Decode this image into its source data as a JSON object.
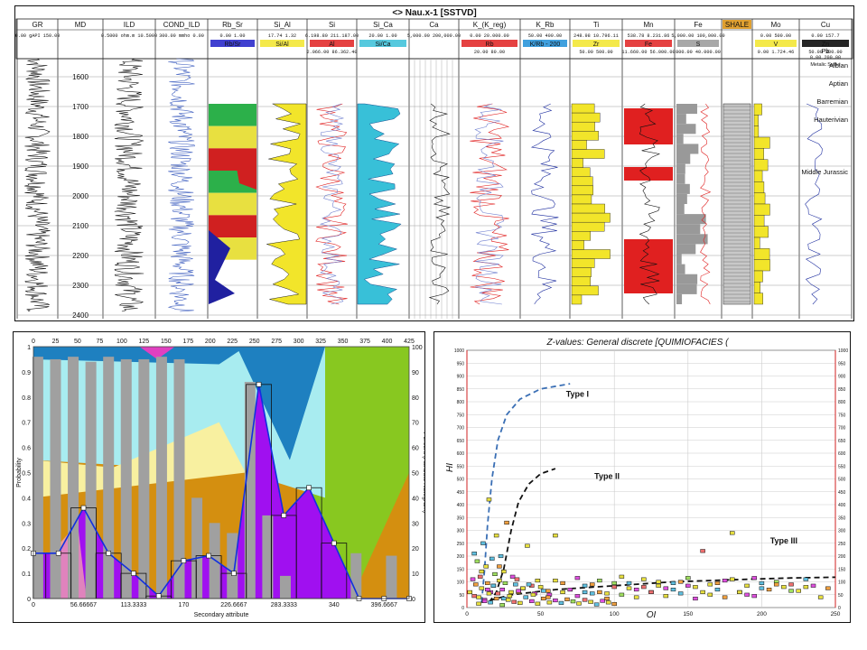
{
  "well_log": {
    "title": "<> Nau.x-1 [SSTVD]",
    "tracks": [
      {
        "name": "GR",
        "scale": "0.00 gAPI 150.00"
      },
      {
        "name": "MD",
        "scale": ""
      },
      {
        "name": "ILD",
        "scale": "0.5000 ohm.m 10.5000"
      },
      {
        "name": "COND_ILD",
        "scale": "300.00 mmho 0.00"
      },
      {
        "name": "Rb_Sr",
        "scale": "0.00   1.00",
        "legend": "Rb/Sr",
        "color": "#1f1fc8"
      },
      {
        "name": "Si_Al",
        "scale": "17.74   1.32",
        "legend": "Si/Al",
        "color": "#f2e52a"
      },
      {
        "name": "Si",
        "scale": "6.198.80  211.187.00",
        "legend": "Al",
        "legend_scale": "2.066.00  86.362.40",
        "color": "#e02020"
      },
      {
        "name": "Si_Ca",
        "scale": "20.00   1.00",
        "legend": "Si/Ca",
        "color": "#38c0d8"
      },
      {
        "name": "Ca",
        "scale": "5,000.00 200,000.00",
        "legend": "",
        "color": "#1a4db0"
      },
      {
        "name": "K_(K_reg)",
        "scale": "0.00  20.000.00",
        "legend": "Rb",
        "legend_scale": "20.00   80.00",
        "color": "#e02020"
      },
      {
        "name": "K_Rb",
        "scale": "50.00   400.00",
        "legend": "K/Rb - 200",
        "color": "#1f8fd8"
      },
      {
        "name": "Ti",
        "scale": "248.98  10.796.11",
        "legend": "Zr",
        "legend_scale": "50.00   500.00",
        "color": "#f2e52a"
      },
      {
        "name": "Mn",
        "scale": "538.78  8.231.86",
        "legend": "Fe",
        "legend_scale": "11.660.00  56.000.00",
        "color": "#e02020"
      },
      {
        "name": "Fe",
        "scale": "5,000.00  100,000.00",
        "legend": "S",
        "legend_scale": "800.00  40.000.00",
        "color": "#999999"
      },
      {
        "name": "SHALE",
        "scale": "",
        "legend": "",
        "color": "#e0a030"
      },
      {
        "name": "Mo",
        "scale": "0.00  500.00",
        "legend": "V",
        "legend_scale": "0.00  1.724.46",
        "color": "#f2e52a"
      },
      {
        "name": "Cu",
        "scale": "0.00  157.7",
        "legend": "Zn",
        "legend_scale": "50.00  300.00",
        "legend2": "Pb",
        "legend2_scale": "0.00  200.00",
        "footer": "Metalic Sulfur"
      }
    ],
    "depths": [
      "1600",
      "1700",
      "1800",
      "1900",
      "2000",
      "2100",
      "2200",
      "2300",
      "2400"
    ],
    "zones": [
      "Albian",
      "Aptian",
      "Barremian",
      "Hauterivian",
      "Middle Jurassic"
    ]
  },
  "chart_data": [
    {
      "type": "bar",
      "title": "",
      "xlabel": "Secondary attribute",
      "ylabel": "Probability",
      "y2label": "Percent (Attribute histogram)",
      "xlim": [
        0,
        425
      ],
      "ylim": [
        0,
        1
      ],
      "y2lim": [
        0,
        100
      ],
      "top_ticks": [
        "0",
        "25",
        "50",
        "75",
        "100",
        "125",
        "150",
        "175",
        "200",
        "225",
        "250",
        "275",
        "300",
        "325",
        "350",
        "375",
        "400",
        "425"
      ],
      "bottom_ticks": [
        "0",
        "56.66667",
        "113.3333",
        "170",
        "226.6667",
        "283.3333",
        "340",
        "396.6667"
      ],
      "left_ticks": [
        "0",
        "0.1",
        "0.2",
        "0.3",
        "0.4",
        "0.5",
        "0.6",
        "0.7",
        "0.8",
        "0.9",
        "1"
      ],
      "right_ticks": [
        "0",
        "10",
        "20",
        "30",
        "40",
        "50",
        "60",
        "70",
        "80",
        "90",
        "100"
      ],
      "histogram_bars": {
        "x": [
          5,
          25,
          45,
          65,
          85,
          105,
          125,
          145,
          165,
          185,
          205,
          225,
          245,
          265,
          285,
          305,
          325,
          345,
          365,
          385,
          405,
          425
        ],
        "percent": [
          96,
          95,
          96,
          94,
          96,
          95,
          95,
          96,
          95,
          40,
          30,
          26,
          86,
          33,
          9,
          0,
          0,
          0,
          18,
          0,
          17,
          0
        ]
      },
      "probability_curve": {
        "x": [
          0,
          28.3,
          56.7,
          85,
          113.3,
          141.7,
          170,
          198.3,
          226.7,
          255,
          283.3,
          311.7,
          340,
          368.3,
          396.7,
          425
        ],
        "y": [
          0.18,
          0.18,
          0.36,
          0.18,
          0.1,
          0.01,
          0.15,
          0.17,
          0.1,
          0.85,
          0.33,
          0.44,
          0.22,
          0.0,
          0.0,
          0.0
        ]
      }
    },
    {
      "type": "scatter",
      "title": "Z-values: General discrete [QUIMIOFACIES (",
      "xlabel": "OI",
      "ylabel": "HI",
      "xlim": [
        0,
        250
      ],
      "ylim": [
        0,
        1000
      ],
      "x_ticks": [
        "0",
        "50",
        "100",
        "150",
        "200",
        "250"
      ],
      "y_ticks": [
        "0",
        "50",
        "100",
        "150",
        "200",
        "250",
        "300",
        "350",
        "400",
        "450",
        "500",
        "550",
        "600",
        "650",
        "700",
        "750",
        "800",
        "850",
        "900",
        "950",
        "1000"
      ],
      "curves": [
        {
          "label": "Type I",
          "style": "dashed",
          "color": "#3a6fb5",
          "x": [
            10,
            12,
            14,
            17,
            21,
            27,
            36,
            50,
            70
          ],
          "y": [
            20,
            150,
            320,
            500,
            650,
            750,
            810,
            850,
            870
          ]
        },
        {
          "label": "Type II",
          "style": "dashed",
          "color": "#111111",
          "x": [
            15,
            20,
            25,
            30,
            35,
            42,
            50,
            60
          ],
          "y": [
            20,
            60,
            150,
            300,
            410,
            480,
            520,
            540
          ]
        },
        {
          "label": "Type III",
          "style": "dashed",
          "color": "#111111",
          "x": [
            10,
            30,
            60,
            100,
            140,
            180,
            220,
            250
          ],
          "y": [
            20,
            50,
            70,
            85,
            100,
            108,
            115,
            118
          ]
        }
      ],
      "points": {
        "x": [
          2,
          4,
          5,
          6,
          7,
          8,
          9,
          10,
          11,
          12,
          13,
          14,
          15,
          16,
          17,
          18,
          19,
          20,
          21,
          22,
          23,
          24,
          25,
          27,
          29,
          31,
          33,
          35,
          38,
          41,
          44,
          48,
          52,
          56,
          60,
          65,
          70,
          75,
          80,
          85,
          90,
          95,
          100,
          105,
          110,
          115,
          120,
          125,
          130,
          135,
          140,
          145,
          150,
          155,
          160,
          165,
          170,
          175,
          180,
          185,
          190,
          195,
          200,
          205,
          210,
          215,
          220,
          225,
          230,
          235,
          240,
          245,
          8,
          12,
          16,
          20,
          24,
          28,
          32,
          36,
          40,
          44,
          48,
          52,
          56,
          60,
          64,
          68,
          72,
          76,
          80,
          84,
          88,
          92,
          96,
          100,
          10,
          14,
          18,
          22,
          26,
          30,
          34,
          38,
          42,
          46,
          50,
          55,
          60,
          70,
          80,
          90,
          100,
          110,
          120,
          130,
          140,
          150,
          160,
          170,
          180,
          190,
          200,
          210,
          220,
          230,
          5,
          15,
          25,
          35,
          45,
          55,
          65,
          75,
          85,
          95,
          105,
          115,
          125,
          135,
          145,
          155,
          165,
          175,
          185,
          195
        ],
        "y": [
          60,
          110,
          210,
          90,
          180,
          40,
          120,
          75,
          250,
          30,
          160,
          95,
          420,
          60,
          190,
          85,
          130,
          280,
          55,
          105,
          200,
          70,
          140,
          330,
          45,
          120,
          90,
          60,
          75,
          240,
          85,
          105,
          65,
          50,
          280,
          95,
          70,
          115,
          60,
          90,
          105,
          55,
          80,
          120,
          95,
          70,
          110,
          60,
          85,
          75,
          95,
          100,
          115,
          80,
          220,
          90,
          70,
          105,
          290,
          60,
          85,
          115,
          95,
          70,
          100,
          80,
          90,
          65,
          110,
          85,
          40,
          75,
          15,
          25,
          20,
          35,
          10,
          30,
          22,
          18,
          40,
          25,
          15,
          35,
          20,
          28,
          18,
          32,
          24,
          16,
          30,
          22,
          12,
          26,
          20,
          14,
          140,
          70,
          85,
          160,
          95,
          60,
          110,
          75,
          90,
          55,
          80,
          65,
          105,
          70,
          85,
          60,
          95,
          75,
          80,
          100,
          70,
          85,
          60,
          95,
          110,
          50,
          75,
          90,
          65,
          80,
          45,
          55,
          35,
          65,
          50,
          40,
          60,
          45,
          55,
          35,
          50,
          40,
          60,
          45,
          55,
          35,
          50,
          40,
          60,
          45
        ],
        "colors": [
          "#e8e040",
          "#e050e0",
          "#60c0e0",
          "#f0a040",
          "#a0e060",
          "#e8e040",
          "#f07070",
          "#e8e040",
          "#60c0e0",
          "#e050e0",
          "#e8e040",
          "#f0a040"
        ]
      },
      "annotations": [
        "Type I",
        "Type II",
        "Type III"
      ]
    }
  ]
}
